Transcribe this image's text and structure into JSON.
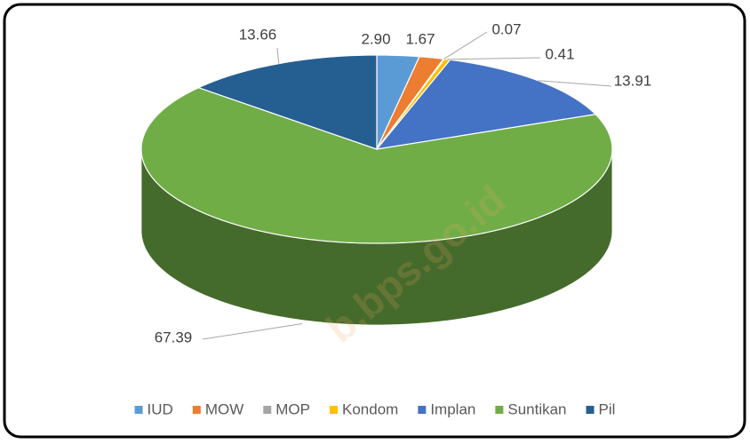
{
  "chart_data": {
    "type": "pie",
    "categories": [
      "IUD",
      "MOW",
      "MOP",
      "Kondom",
      "Implan",
      "Suntikan",
      "Pil"
    ],
    "values": [
      2.9,
      1.67,
      0.07,
      0.41,
      13.91,
      67.39,
      13.66
    ],
    "value_labels": [
      "2.90",
      "1.67",
      "0.07",
      "0.41",
      "13.91",
      "67.39",
      "13.66"
    ],
    "colors": [
      "#5b9bd5",
      "#ed7d31",
      "#a5a5a5",
      "#ffc000",
      "#4472c4",
      "#70ad47",
      "#255e91"
    ],
    "legend": "bottom",
    "watermark": "b.bps.go.id"
  }
}
